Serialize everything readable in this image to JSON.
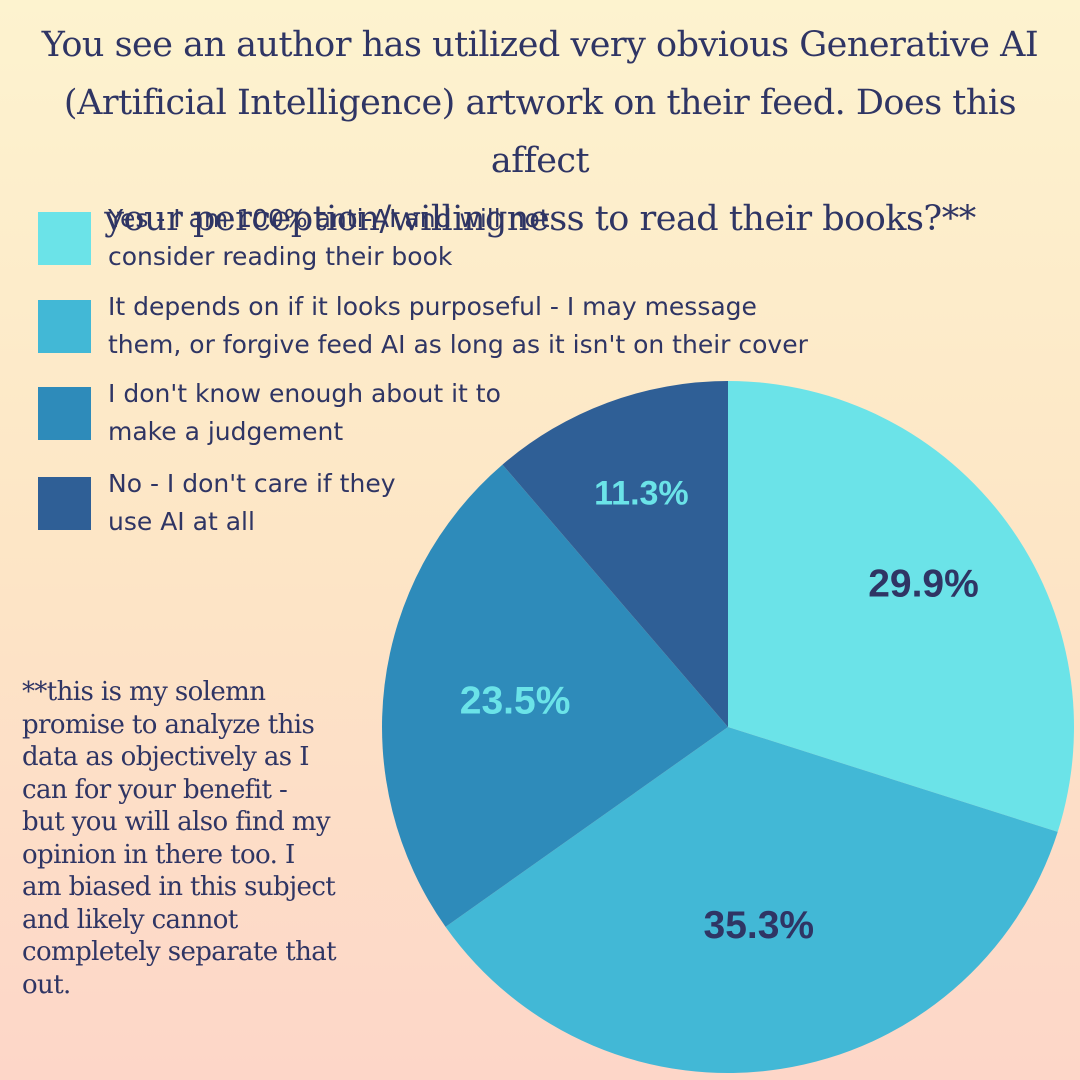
{
  "title_lines": [
    "You see an author has utilized very obvious Generative AI",
    "(Artificial Intelligence) artwork on their feed. Does this affect",
    "your perception/willingness to read their books?**"
  ],
  "legend": [
    {
      "lines": [
        "Yes - I am 100% anti-AI and will not",
        "consider reading their book"
      ]
    },
    {
      "lines": [
        "It depends on if it looks purposeful - I may message",
        "them, or forgive feed AI as long as it isn't on their cover"
      ]
    },
    {
      "lines": [
        "I don't know enough about it to",
        "make a judgement"
      ]
    },
    {
      "lines": [
        "No - I don't care if they",
        "use AI at all"
      ]
    }
  ],
  "footnote_lines": [
    "**this is my solemn",
    "promise to analyze this",
    "data as objectively as I",
    "can for your benefit -",
    "but you will also find my",
    "opinion in there too. I",
    "am biased in this subject",
    "and likely cannot",
    "completely separate that",
    "out."
  ],
  "chart_data": {
    "type": "pie",
    "title": "You see an author has utilized very obvious Generative AI (Artificial Intelligence) artwork on their feed. Does this affect your perception/willingness to read their books?**",
    "start": "12 o'clock, clockwise",
    "slices": [
      {
        "label": "Yes - I am 100% anti-AI and will not consider reading their book",
        "value": 29.9,
        "value_label": "29.9%",
        "color": "#6be3e8",
        "label_color": "#2f3564"
      },
      {
        "label": "It depends on if it looks purposeful - I may message them, or forgive feed AI as long as it isn't on their cover",
        "value": 35.3,
        "value_label": "35.3%",
        "color": "#42b8d6",
        "label_color": "#2f3564"
      },
      {
        "label": "I don't know enough about it to make a judgement",
        "value": 23.5,
        "value_label": "23.5%",
        "color": "#2e8bba",
        "label_color": "#6be3e8"
      },
      {
        "label": "No - I don't care if they use AI at all",
        "value": 11.3,
        "value_label": "11.3%",
        "color": "#2f5f96",
        "label_color": "#6be3e8"
      }
    ],
    "legend_position": "top-left"
  }
}
